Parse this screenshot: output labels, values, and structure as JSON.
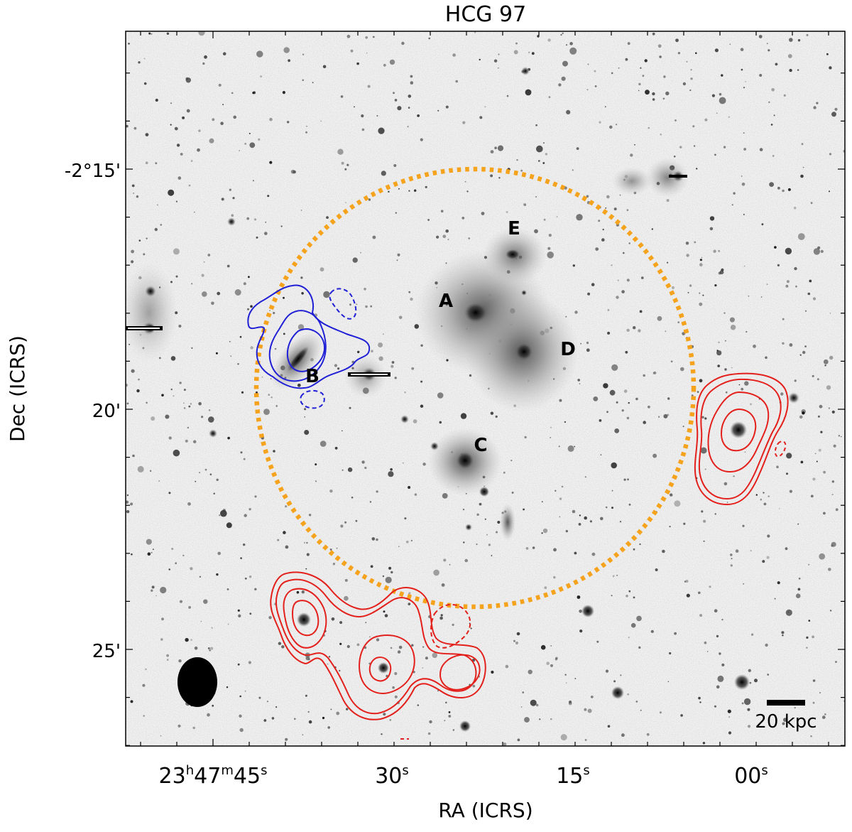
{
  "title": "HCG 97",
  "x_axis": {
    "label": "RA (ICRS)",
    "ticks": [
      {
        "main": "23",
        "sup1": "h",
        "mid": "47",
        "sup2": "m",
        "sec": "45",
        "sup3": "s"
      },
      {
        "main": "30",
        "sup3": "s"
      },
      {
        "main": "15",
        "sup3": "s"
      },
      {
        "main": "00",
        "sup3": "s"
      }
    ]
  },
  "y_axis": {
    "label": "Dec (ICRS)",
    "ticks": [
      "-2°15'",
      "20'",
      "25'"
    ]
  },
  "galaxy_labels": [
    "A",
    "B",
    "C",
    "D",
    "E"
  ],
  "scale_bar": {
    "label": "20 kpc"
  },
  "colors": {
    "group_circle": "#f5a31d",
    "contour_blue": "#1f1fd6",
    "contour_red": "#e3201b",
    "beam": "#000000",
    "background": "#efefef"
  },
  "beam": {
    "shape": "ellipse",
    "fill": "black"
  }
}
